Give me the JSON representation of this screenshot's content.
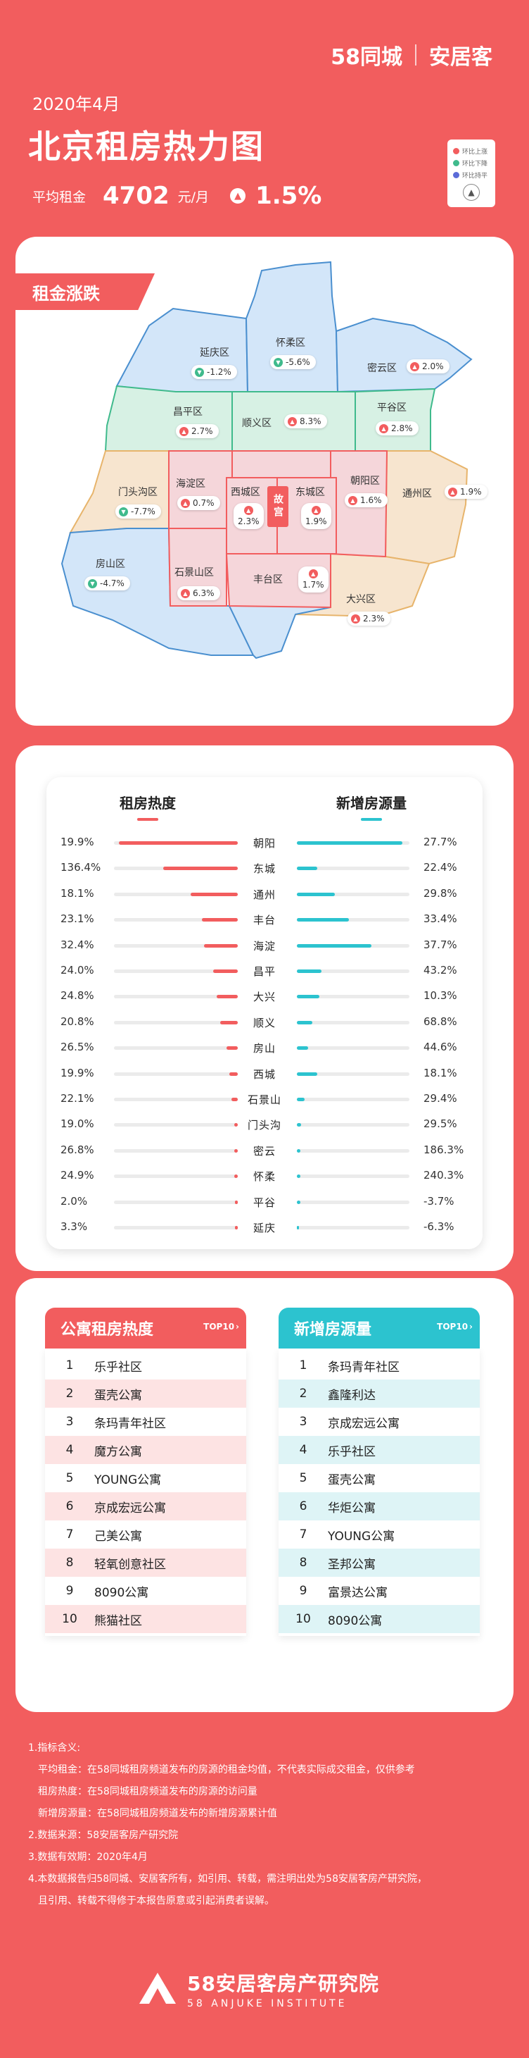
{
  "header": {
    "brand_58": "58同城",
    "brand_ajk": "安居客",
    "date": "2020年4月",
    "title": "北京租房热力图",
    "avg_rent_label": "平均租金",
    "avg_rent_value": "4702",
    "avg_rent_unit": "元/月",
    "change_pct": "1.5%",
    "legend": {
      "items": [
        "环比上涨",
        "环比下降",
        "环比持平"
      ],
      "colors": [
        "#f25d5e",
        "#3fba8c",
        "#5b6bd8"
      ]
    }
  },
  "map": {
    "section_title": "租金涨跌",
    "palace_label": "故宫",
    "districts": [
      {
        "name": "延庆区",
        "change": "-1.2%",
        "dir": "down"
      },
      {
        "name": "怀柔区",
        "change": "-5.6%",
        "dir": "down"
      },
      {
        "name": "密云区",
        "change": "2.0%",
        "dir": "up"
      },
      {
        "name": "昌平区",
        "change": "2.7%",
        "dir": "up"
      },
      {
        "name": "顺义区",
        "change": "8.3%",
        "dir": "up"
      },
      {
        "name": "平谷区",
        "change": "2.8%",
        "dir": "up"
      },
      {
        "name": "门头沟区",
        "change": "-7.7%",
        "dir": "down"
      },
      {
        "name": "海淀区",
        "change": "0.7%",
        "dir": "up"
      },
      {
        "name": "西城区",
        "change": "2.3%",
        "dir": "up"
      },
      {
        "name": "东城区",
        "change": "1.9%",
        "dir": "up"
      },
      {
        "name": "朝阳区",
        "change": "1.6%",
        "dir": "up"
      },
      {
        "name": "通州区",
        "change": "1.9%",
        "dir": "up"
      },
      {
        "name": "房山区",
        "change": "-4.7%",
        "dir": "down"
      },
      {
        "name": "石景山区",
        "change": "6.3%",
        "dir": "up"
      },
      {
        "name": "丰台区",
        "change": "1.7%",
        "dir": "up"
      },
      {
        "name": "大兴区",
        "change": "2.3%",
        "dir": "up"
      }
    ]
  },
  "bars": {
    "left_title": "租房热度",
    "right_title": "新增房源量",
    "rows": [
      {
        "name": "朝阳",
        "heat": "19.9%",
        "heat_level": 0.96,
        "new": "27.7%",
        "new_level": 0.94
      },
      {
        "name": "东城",
        "heat": "136.4%",
        "heat_level": 0.6,
        "new": "22.4%",
        "new_level": 0.18
      },
      {
        "name": "通州",
        "heat": "18.1%",
        "heat_level": 0.38,
        "new": "29.8%",
        "new_level": 0.34
      },
      {
        "name": "丰台",
        "heat": "23.1%",
        "heat_level": 0.29,
        "new": "33.4%",
        "new_level": 0.46
      },
      {
        "name": "海淀",
        "heat": "32.4%",
        "heat_level": 0.27,
        "new": "37.7%",
        "new_level": 0.66
      },
      {
        "name": "昌平",
        "heat": "24.0%",
        "heat_level": 0.2,
        "new": "43.2%",
        "new_level": 0.22
      },
      {
        "name": "大兴",
        "heat": "24.8%",
        "heat_level": 0.17,
        "new": "10.3%",
        "new_level": 0.2
      },
      {
        "name": "顺义",
        "heat": "20.8%",
        "heat_level": 0.14,
        "new": "68.8%",
        "new_level": 0.14
      },
      {
        "name": "房山",
        "heat": "26.5%",
        "heat_level": 0.09,
        "new": "44.6%",
        "new_level": 0.1
      },
      {
        "name": "西城",
        "heat": "19.9%",
        "heat_level": 0.07,
        "new": "18.1%",
        "new_level": 0.18
      },
      {
        "name": "石景山",
        "heat": "22.1%",
        "heat_level": 0.05,
        "new": "29.4%",
        "new_level": 0.07
      },
      {
        "name": "门头沟",
        "heat": "19.0%",
        "heat_level": 0.03,
        "new": "29.5%",
        "new_level": 0.04
      },
      {
        "name": "密云",
        "heat": "26.8%",
        "heat_level": 0.03,
        "new": "186.3%",
        "new_level": 0.03
      },
      {
        "name": "怀柔",
        "heat": "24.9%",
        "heat_level": 0.03,
        "new": "240.3%",
        "new_level": 0.03
      },
      {
        "name": "平谷",
        "heat": "2.0%",
        "heat_level": 0.02,
        "new": "-3.7%",
        "new_level": 0.03
      },
      {
        "name": "延庆",
        "heat": "3.3%",
        "heat_level": 0.02,
        "new": "-6.3%",
        "new_level": 0.02
      }
    ]
  },
  "top10": {
    "apartment": {
      "title": "公寓租房热度",
      "badge": "TOP10",
      "items": [
        "乐乎社区",
        "蛋壳公寓",
        "条玛青年社区",
        "魔方公寓",
        "YOUNG公寓",
        "京成宏远公寓",
        "己美公寓",
        "轻氧创意社区",
        "8090公寓",
        "熊猫社区"
      ]
    },
    "listing": {
      "title": "新增房源量",
      "badge": "TOP10",
      "items": [
        "条玛青年社区",
        "鑫隆利达",
        "京成宏远公寓",
        "乐乎社区",
        "蛋壳公寓",
        "华炬公寓",
        "YOUNG公寓",
        "圣邦公寓",
        "富景达公寓",
        "8090公寓"
      ]
    },
    "ranks": [
      "1",
      "2",
      "3",
      "4",
      "5",
      "6",
      "7",
      "8",
      "9",
      "10"
    ]
  },
  "notes": {
    "l1": "1.指标含义:",
    "l2": "平均租金：在58同城租房频道发布的房源的租金均值，不代表实际成交租金，仅供参考",
    "l3": "租房热度：在58同城租房频道发布的房源的访问量",
    "l4": "新增房源量：在58同城租房频道发布的新增房源累计值",
    "l5": "2.数据来源：58安居客房产研究院",
    "l6": "3.数据有效期：2020年4月",
    "l7": "4.本数据报告归58同城、安居客所有，如引用、转载，需注明出处为58安居客房产研究院，",
    "l8": "且引用、转载不得修于本报告原意或引起消费者误解。"
  },
  "footer": {
    "name": "58安居客房产研究院",
    "name_en": "58 ANJUKE INSTITUTE"
  }
}
